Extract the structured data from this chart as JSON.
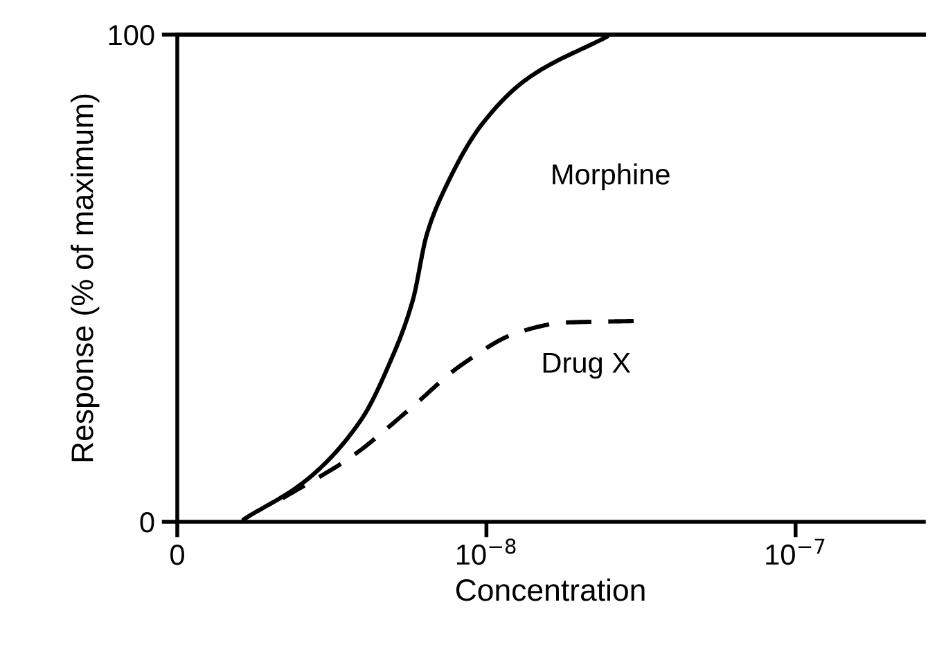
{
  "chart_data": {
    "type": "line",
    "xlabel": "Concentration",
    "ylabel": "Response (% of maximum)",
    "log": "x",
    "xlim": [
      1e-09,
      2.6e-07
    ],
    "xticks": [
      {
        "value": 1e-09,
        "label": "0"
      },
      {
        "value": 1e-08,
        "label": "10$^{−8}$"
      },
      {
        "value": 1e-07,
        "label": "10$^{−7}$"
      }
    ],
    "ylim": [
      0,
      100
    ],
    "yticks": [
      0,
      100
    ],
    "grid": false,
    "legend": false,
    "ref_lines": [
      {
        "axis": "y",
        "value": 100,
        "color": "#000000"
      }
    ],
    "series": [
      {
        "name": "Morphine",
        "color": "#000000",
        "line_style": "solid",
        "x": [
          1.64e-09,
          2.61e-09,
          3.94e-09,
          4.85e-09,
          5.78e-09,
          6.41e-09,
          7.33e-09,
          9.7e-09,
          1.36e-08,
          2.46e-08
        ],
        "values": [
          0.5,
          8.5,
          21,
          32.4,
          45.5,
          58.9,
          68.3,
          81.7,
          91,
          99.6
        ]
      },
      {
        "name": "Drug X",
        "color": "#000000",
        "line_style": "dashed",
        "x": [
          2.19e-09,
          3.67e-09,
          5.55e-09,
          8.39e-09,
          1.27e-08,
          1.8e-08,
          3.02e-08
        ],
        "values": [
          4.8,
          13.4,
          22.7,
          32.4,
          38.9,
          40.9,
          41.2
        ]
      }
    ]
  }
}
